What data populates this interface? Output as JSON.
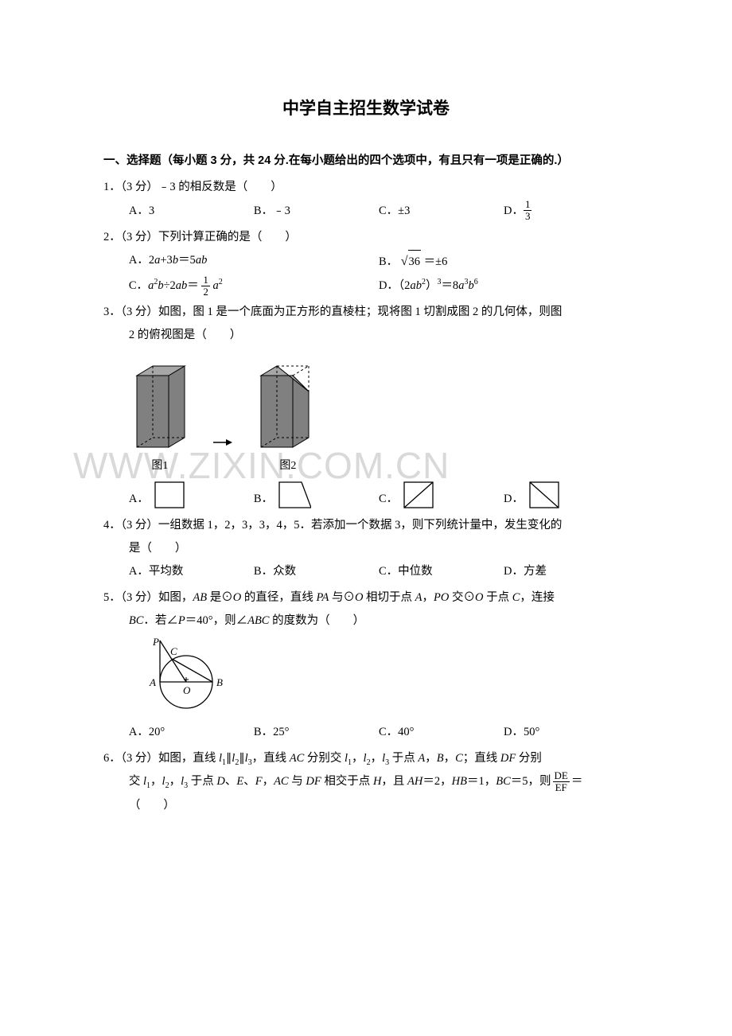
{
  "document": {
    "title": "中学自主招生数学试卷",
    "section_header": "一、选择题（每小题 3 分，共 24 分.在每小题给出的四个选项中，有且只有一项是正确的.）",
    "font_family_body": "SimSun",
    "font_family_heading": "SimHei",
    "text_color": "#000000",
    "background_color": "#ffffff"
  },
  "watermark": {
    "text": "WWW.ZIXIN.COM.CN",
    "color": "#d9d9d9",
    "fontsize": 46
  },
  "q1": {
    "stem": "1．（3 分）﹣3 的相反数是（　　）",
    "A": "A．3",
    "B": "B．﹣3",
    "C": "C．±3",
    "D_prefix": "D．",
    "D_num": "1",
    "D_den": "3"
  },
  "q2": {
    "stem": "2．（3 分）下列计算正确的是（　　）",
    "A_html": "A．2<span class=\"italic\">a</span>+3<span class=\"italic\">b</span>＝5<span class=\"italic\">ab</span>",
    "B_prefix": "B．",
    "B_rad": "36",
    "B_suffix": "＝±6",
    "C_prefix": "C．<span class=\"italic\">a</span><sup>2</sup><span class=\"italic\">b</span>÷2<span class=\"italic\">ab</span>＝",
    "C_num": "1",
    "C_den": "2",
    "C_suffix": "<span class=\"italic\">a</span><sup>2</sup>",
    "D_html": "D．（2<span class=\"italic\">ab</span><sup>2</sup>）<sup>3</sup>＝8<span class=\"italic\">a</span><sup>3</sup><span class=\"italic\">b</span><sup>6</sup>"
  },
  "q3": {
    "stem_l1": "3．（3 分）如图，图 1 是一个底面为正方形的直棱柱；现将图 1 切割成图 2 的几何体，则图",
    "stem_l2": "2 的俯视图是（　　）",
    "fig1_label": "图1",
    "fig2_label": "图2",
    "prism": {
      "face_color": "#808080",
      "top_color": "#a6a6a6",
      "line_color": "#000000",
      "dash_color": "#000000"
    },
    "shape_options": {
      "stroke": "#000000",
      "fill": "#ffffff",
      "stroke_width": 1.3
    },
    "A": "A．",
    "B": "B．",
    "C": "C．",
    "D": "D．"
  },
  "q4": {
    "stem_l1": "4．（3 分）一组数据 1，2，3，3，4，5．若添加一个数据 3，则下列统计量中，发生变化的",
    "stem_l2": "是（　　）",
    "A": "A．平均数",
    "B": "B．众数",
    "C": "C．中位数",
    "D": "D．方差"
  },
  "q5": {
    "stem_l1_html": "5．（3 分）如图，<span class=\"italic\">AB</span> 是⊙<span class=\"italic\">O</span> 的直径，直线 <span class=\"italic\">PA</span> 与⊙<span class=\"italic\">O</span> 相切于点 <span class=\"italic\">A</span>，<span class=\"italic\">PO</span> 交⊙<span class=\"italic\">O</span> 于点 <span class=\"italic\">C</span>，连接",
    "stem_l2_html": "<span class=\"italic\">BC</span>．若∠<span class=\"italic\">P</span>＝40°，则∠<span class=\"italic\">ABC</span> 的度数为（　　）",
    "fig": {
      "stroke": "#000000",
      "P": "P",
      "C": "C",
      "A": "A",
      "O": "O",
      "B": "B"
    },
    "A": "A．20°",
    "B": "B．25°",
    "C": "C．40°",
    "D": "D．50°"
  },
  "q6": {
    "stem_l1_html": "6．（3 分）如图，直线 <span class=\"italic\">l</span><sub>1</sub>∥<span class=\"italic\">l</span><sub>2</sub>∥<span class=\"italic\">l</span><sub>3</sub>，直线 <span class=\"italic\">AC</span> 分别交 <span class=\"italic\">l</span><sub>1</sub>，<span class=\"italic\">l</span><sub>2</sub>，<span class=\"italic\">l</span><sub>3</sub> 于点 <span class=\"italic\">A</span>，<span class=\"italic\">B</span>，<span class=\"italic\">C</span>；直线 <span class=\"italic\">DF</span> 分别",
    "stem_l2_html": "交 <span class=\"italic\">l</span><sub>1</sub>，<span class=\"italic\">l</span><sub>2</sub>，<span class=\"italic\">l</span><sub>3</sub> 于点 <span class=\"italic\">D</span>、<span class=\"italic\">E</span>、<span class=\"italic\">F</span>，<span class=\"italic\">AC</span> 与 <span class=\"italic\">DF</span> 相交于点 <span class=\"italic\">H</span>，且 <span class=\"italic\">AH</span>＝2，<span class=\"italic\">HB</span>＝1，<span class=\"italic\">BC</span>＝5，则",
    "frac_num": "DE",
    "frac_den": "EF",
    "stem_l2_suffix": "＝",
    "stem_l3": "（　　）"
  }
}
